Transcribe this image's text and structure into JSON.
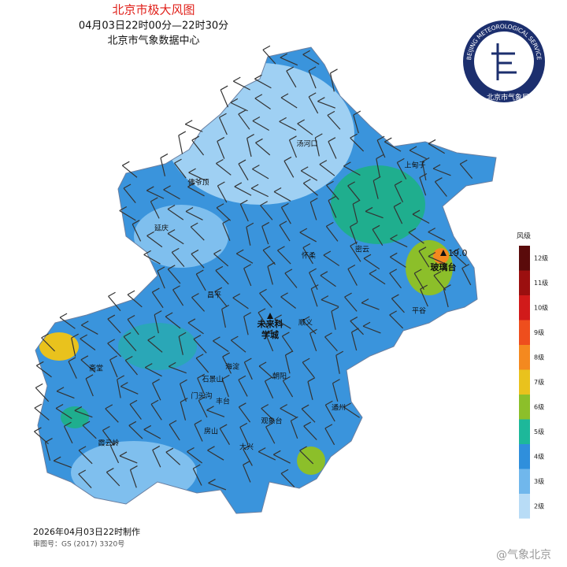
{
  "header": {
    "title": "北京市极大风图",
    "time_range": "04月03日22时00分—22时30分",
    "issuer": "北京市气象数据中心"
  },
  "logo": {
    "ring_text": "BEIJING METEOROLOGICAL SERVICE",
    "name": "北京市气象局"
  },
  "places": [
    "汤河口",
    "上甸子",
    "佛爷顶",
    "延庆",
    "怀柔",
    "密云",
    "昌平",
    "平谷",
    "顺义",
    "斋堂",
    "海淀",
    "朝阳",
    "石景山",
    "门头沟",
    "丰台",
    "观象台",
    "通州",
    "房山",
    "霞云岭",
    "大兴"
  ],
  "stations": [
    {
      "lines": [
        "未来科",
        "学城"
      ]
    },
    {
      "lines": [
        "玻璃台"
      ],
      "label": "19.0"
    }
  ],
  "legend": {
    "title": "风级",
    "items": [
      {
        "label": "12级",
        "color": "#5a0b0b"
      },
      {
        "label": "11级",
        "color": "#9b0f0f"
      },
      {
        "label": "10级",
        "color": "#d11a1a"
      },
      {
        "label": "9级",
        "color": "#ee4e1d"
      },
      {
        "label": "8级",
        "color": "#f4891f"
      },
      {
        "label": "7级",
        "color": "#e9c21d"
      },
      {
        "label": "6级",
        "color": "#8cbf2a"
      },
      {
        "label": "5级",
        "color": "#1db89a"
      },
      {
        "label": "4级",
        "color": "#2f8fdc"
      },
      {
        "label": "3级",
        "color": "#70b7ec"
      },
      {
        "label": "2级",
        "color": "#b8dcf6"
      }
    ]
  },
  "footer": {
    "made": "2026年04月03日22时制作",
    "review": "审图号：GS (2017) 3320号"
  },
  "watermark": "@气象北京"
}
